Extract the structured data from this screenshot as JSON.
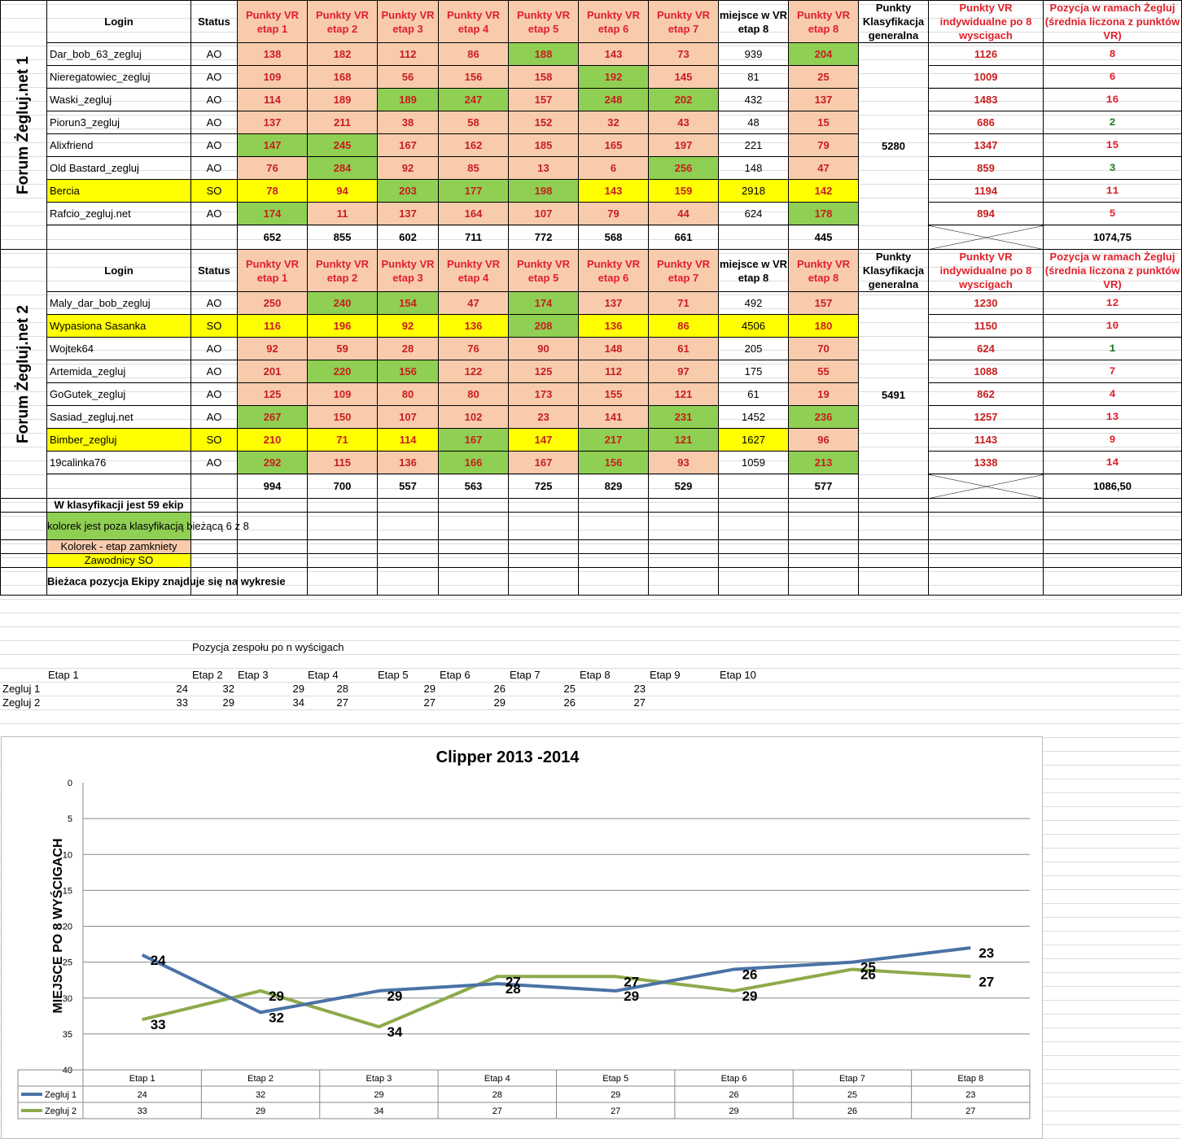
{
  "headers": {
    "login": "Login",
    "status": "Status",
    "stages": [
      "Punkty VR etap 1",
      "Punkty VR etap 2",
      "Punkty VR etap 3",
      "Punkty VR etap 4",
      "Punkty VR etap 5",
      "Punkty VR etap 6",
      "Punkty VR etap 7"
    ],
    "place8": "miejsce w VR etap 8",
    "stage8": "Punkty VR etap 8",
    "general": "Punkty Klasyfikacja generalna",
    "individual": "Punkty VR indywidualne po 8 wyscigach",
    "position": "Pozycja w ramach Żegluj (średnia liczona z punktów VR)"
  },
  "teams": [
    {
      "name": "Forum Żegluj.net 1",
      "general_points": "5280",
      "average": "1074,75",
      "sums": [
        "652",
        "855",
        "602",
        "711",
        "772",
        "568",
        "661",
        "",
        "445"
      ],
      "rows": [
        {
          "login": "Dar_bob_63_zegluj",
          "status": "AO",
          "vals": [
            "138",
            "182",
            "112",
            "86",
            "188",
            "143",
            "73",
            "939",
            "204"
          ],
          "colors": [
            "s",
            "s",
            "s",
            "s",
            "g",
            "s",
            "s",
            "w",
            "g"
          ],
          "indiv": "1126",
          "pos": "8",
          "posc": "red"
        },
        {
          "login": "Nieregatowiec_zegluj",
          "status": "AO",
          "vals": [
            "109",
            "168",
            "56",
            "156",
            "158",
            "192",
            "145",
            "81",
            "25"
          ],
          "colors": [
            "s",
            "s",
            "s",
            "s",
            "s",
            "g",
            "s",
            "w",
            "s"
          ],
          "indiv": "1009",
          "pos": "6",
          "posc": "red"
        },
        {
          "login": "Waski_zegluj",
          "status": "AO",
          "vals": [
            "114",
            "189",
            "189",
            "247",
            "157",
            "248",
            "202",
            "432",
            "137"
          ],
          "colors": [
            "s",
            "s",
            "g",
            "g",
            "s",
            "g",
            "g",
            "w",
            "s"
          ],
          "indiv": "1483",
          "pos": "16",
          "posc": "red"
        },
        {
          "login": "Piorun3_zegluj",
          "status": "AO",
          "vals": [
            "137",
            "211",
            "38",
            "58",
            "152",
            "32",
            "43",
            "48",
            "15"
          ],
          "colors": [
            "s",
            "s",
            "s",
            "s",
            "s",
            "s",
            "s",
            "w",
            "s"
          ],
          "indiv": "686",
          "pos": "2",
          "posc": "grn"
        },
        {
          "login": "Alixfriend",
          "status": "AO",
          "vals": [
            "147",
            "245",
            "167",
            "162",
            "185",
            "165",
            "197",
            "221",
            "79"
          ],
          "colors": [
            "g",
            "g",
            "s",
            "s",
            "s",
            "s",
            "s",
            "w",
            "s"
          ],
          "indiv": "1347",
          "pos": "15",
          "posc": "red"
        },
        {
          "login": "Old Bastard_zegluj",
          "status": "AO",
          "vals": [
            "76",
            "284",
            "92",
            "85",
            "13",
            "6",
            "256",
            "148",
            "47"
          ],
          "colors": [
            "s",
            "g",
            "s",
            "s",
            "s",
            "s",
            "g",
            "w",
            "s"
          ],
          "indiv": "859",
          "pos": "3",
          "posc": "grn"
        },
        {
          "login": "Bercia",
          "status": "SO",
          "vals": [
            "78",
            "94",
            "203",
            "177",
            "198",
            "143",
            "159",
            "2918",
            "142"
          ],
          "colors": [
            "y",
            "y",
            "g",
            "g",
            "g",
            "y",
            "y",
            "y",
            "y"
          ],
          "indiv": "1194",
          "pos": "11",
          "posc": "red",
          "yellow": true
        },
        {
          "login": "Rafcio_zegluj.net",
          "status": "AO",
          "vals": [
            "174",
            "11",
            "137",
            "164",
            "107",
            "79",
            "44",
            "624",
            "178"
          ],
          "colors": [
            "g",
            "s",
            "s",
            "s",
            "s",
            "s",
            "s",
            "w",
            "g"
          ],
          "indiv": "894",
          "pos": "5",
          "posc": "red"
        }
      ]
    },
    {
      "name": "Forum Żegluj.net 2",
      "general_points": "5491",
      "average": "1086,50",
      "sums": [
        "994",
        "700",
        "557",
        "563",
        "725",
        "829",
        "529",
        "",
        "577"
      ],
      "rows": [
        {
          "login": "Maly_dar_bob_zegluj",
          "status": "AO",
          "vals": [
            "250",
            "240",
            "154",
            "47",
            "174",
            "137",
            "71",
            "492",
            "157"
          ],
          "colors": [
            "s",
            "g",
            "g",
            "s",
            "g",
            "s",
            "s",
            "w",
            "s"
          ],
          "indiv": "1230",
          "pos": "12",
          "posc": "red"
        },
        {
          "login": "Wypasiona Sasanka",
          "status": "SO",
          "vals": [
            "116",
            "196",
            "92",
            "136",
            "208",
            "136",
            "86",
            "4506",
            "180"
          ],
          "colors": [
            "y",
            "y",
            "y",
            "y",
            "g",
            "y",
            "y",
            "y",
            "y"
          ],
          "indiv": "1150",
          "pos": "10",
          "posc": "red",
          "yellow": true
        },
        {
          "login": "Wojtek64",
          "status": "AO",
          "vals": [
            "92",
            "59",
            "28",
            "76",
            "90",
            "148",
            "61",
            "205",
            "70"
          ],
          "colors": [
            "s",
            "s",
            "s",
            "s",
            "s",
            "s",
            "s",
            "w",
            "s"
          ],
          "indiv": "624",
          "pos": "1",
          "posc": "grn"
        },
        {
          "login": "Artemida_zegluj",
          "status": "AO",
          "vals": [
            "201",
            "220",
            "156",
            "122",
            "125",
            "112",
            "97",
            "175",
            "55"
          ],
          "colors": [
            "s",
            "g",
            "g",
            "s",
            "s",
            "s",
            "s",
            "w",
            "s"
          ],
          "indiv": "1088",
          "pos": "7",
          "posc": "red"
        },
        {
          "login": "GoGutek_zegluj",
          "status": "AO",
          "vals": [
            "125",
            "109",
            "80",
            "80",
            "173",
            "155",
            "121",
            "61",
            "19"
          ],
          "colors": [
            "s",
            "s",
            "s",
            "s",
            "s",
            "s",
            "s",
            "w",
            "s"
          ],
          "indiv": "862",
          "pos": "4",
          "posc": "red"
        },
        {
          "login": "Sasiad_zegluj.net",
          "status": "AO",
          "vals": [
            "267",
            "150",
            "107",
            "102",
            "23",
            "141",
            "231",
            "1452",
            "236"
          ],
          "colors": [
            "g",
            "s",
            "s",
            "s",
            "s",
            "s",
            "g",
            "w",
            "g"
          ],
          "indiv": "1257",
          "pos": "13",
          "posc": "red"
        },
        {
          "login": "Bimber_zegluj",
          "status": "SO",
          "vals": [
            "210",
            "71",
            "114",
            "167",
            "147",
            "217",
            "121",
            "1627",
            "96"
          ],
          "colors": [
            "y",
            "y",
            "y",
            "g",
            "y",
            "g",
            "g",
            "y",
            "s"
          ],
          "indiv": "1143",
          "pos": "9",
          "posc": "red",
          "yellow": true
        },
        {
          "login": "19calinka76",
          "status": "AO",
          "vals": [
            "292",
            "115",
            "136",
            "166",
            "167",
            "156",
            "93",
            "1059",
            "213"
          ],
          "colors": [
            "g",
            "s",
            "s",
            "g",
            "s",
            "g",
            "s",
            "w",
            "g"
          ],
          "indiv": "1338",
          "pos": "14",
          "posc": "red"
        }
      ]
    }
  ],
  "legend": {
    "teams_count": "W klasyfikacji jest 59 ekip",
    "green_note": "kolorek jest  poza klasyfikacją bieżącą 6 z 8",
    "salmon_note": "Kolorek - etap zamkniety",
    "yellow_note": "Zawodnicy SO",
    "position_note": "Bieżaca pozycja Ekipy znajduje się na wykresie"
  },
  "position_table": {
    "title": "Pozycja zespołu po n wyścigach",
    "stages": [
      "Etap 1",
      "Etap 2",
      "Etap 3",
      "Etap 4",
      "Etap 5",
      "Etap 6",
      "Etap 7",
      "Etap 8",
      "Etap 9",
      "Etap 10"
    ],
    "rows": [
      {
        "label": "Zegluj 1",
        "vals": [
          "24",
          "32",
          "29",
          "28",
          "29",
          "26",
          "25",
          "23"
        ]
      },
      {
        "label": "Zegluj 2",
        "vals": [
          "33",
          "29",
          "34",
          "27",
          "27",
          "29",
          "26",
          "27"
        ]
      }
    ]
  },
  "chart_data": {
    "type": "line",
    "title": "Clipper 2013 -2014",
    "ylabel": "MIEJSCE PO 8 WYŚCIGACH",
    "xlabel": "",
    "categories": [
      "Etap 1",
      "Etap 2",
      "Etap 3",
      "Etap 4",
      "Etap 5",
      "Etap 6",
      "Etap 7",
      "Etap 8"
    ],
    "yticks": [
      "0",
      "5",
      "10",
      "15",
      "20",
      "25",
      "30",
      "35",
      "40"
    ],
    "ylim": [
      0,
      40
    ],
    "y_reversed": true,
    "grid": true,
    "data_table": true,
    "series": [
      {
        "name": "Zegluj 1",
        "color": "#4a72a6",
        "values": [
          24,
          32,
          29,
          28,
          29,
          26,
          25,
          23
        ]
      },
      {
        "name": "Zegluj 2",
        "color": "#8daa4a",
        "values": [
          33,
          29,
          34,
          27,
          27,
          29,
          26,
          27
        ]
      }
    ]
  }
}
